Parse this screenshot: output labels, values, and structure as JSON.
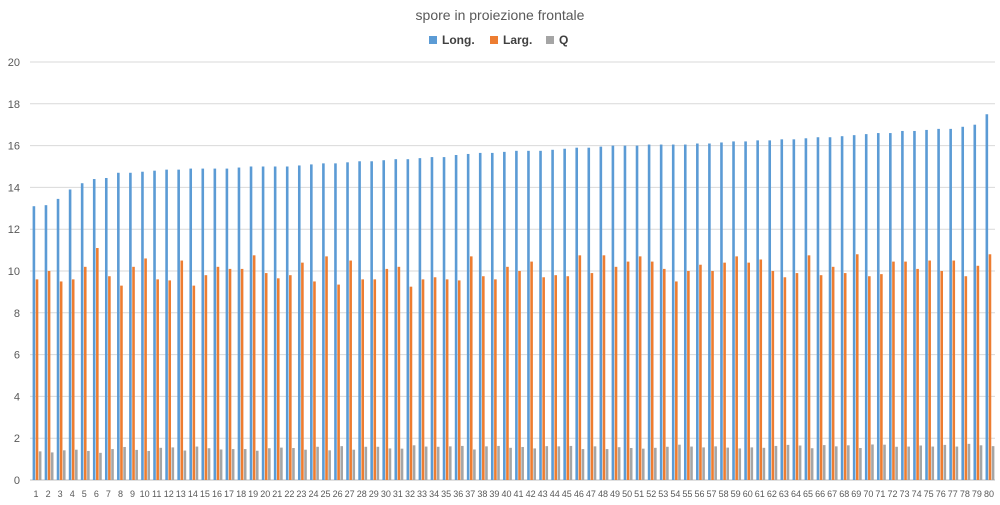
{
  "chart_data": {
    "type": "bar",
    "title": "spore in proiezione frontale",
    "xlabel": "",
    "ylabel": "",
    "ylim": [
      0,
      20
    ],
    "y_ticks": [
      0,
      2,
      4,
      6,
      8,
      10,
      12,
      14,
      16,
      18,
      20
    ],
    "grid": true,
    "legend_position": "top",
    "categories": [
      "1",
      "2",
      "3",
      "4",
      "5",
      "6",
      "7",
      "8",
      "9",
      "10",
      "11",
      "12",
      "13",
      "14",
      "15",
      "16",
      "17",
      "18",
      "19",
      "20",
      "21",
      "22",
      "23",
      "24",
      "25",
      "26",
      "27",
      "28",
      "29",
      "30",
      "31",
      "32",
      "33",
      "34",
      "35",
      "36",
      "37",
      "38",
      "39",
      "40",
      "41",
      "42",
      "43",
      "44",
      "45",
      "46",
      "47",
      "48",
      "49",
      "50",
      "51",
      "52",
      "53",
      "54",
      "55",
      "56",
      "57",
      "58",
      "59",
      "60",
      "61",
      "62",
      "63",
      "64",
      "65",
      "66",
      "67",
      "68",
      "69",
      "70",
      "71",
      "72",
      "73",
      "74",
      "75",
      "76",
      "77",
      "78",
      "79",
      "80"
    ],
    "series": [
      {
        "name": "Long.",
        "color": "#5b9bd5",
        "values": [
          13.1,
          13.15,
          13.45,
          13.9,
          14.2,
          14.4,
          14.45,
          14.7,
          14.7,
          14.75,
          14.8,
          14.85,
          14.85,
          14.9,
          14.9,
          14.9,
          14.9,
          14.95,
          15.0,
          15.0,
          15.0,
          15.0,
          15.05,
          15.1,
          15.15,
          15.15,
          15.2,
          15.25,
          15.25,
          15.3,
          15.35,
          15.35,
          15.4,
          15.45,
          15.45,
          15.55,
          15.6,
          15.65,
          15.65,
          15.7,
          15.75,
          15.75,
          15.75,
          15.8,
          15.85,
          15.9,
          15.9,
          15.95,
          16.0,
          16.0,
          16.0,
          16.05,
          16.05,
          16.05,
          16.05,
          16.1,
          16.1,
          16.15,
          16.2,
          16.2,
          16.25,
          16.25,
          16.3,
          16.3,
          16.35,
          16.4,
          16.4,
          16.45,
          16.5,
          16.55,
          16.6,
          16.6,
          16.7,
          16.7,
          16.75,
          16.8,
          16.8,
          16.9,
          17.0,
          17.5
        ]
      },
      {
        "name": "Larg.",
        "color": "#ed7d31",
        "values": [
          9.6,
          10.0,
          9.5,
          9.6,
          10.2,
          11.1,
          9.75,
          9.3,
          10.2,
          10.6,
          9.6,
          9.55,
          10.5,
          9.3,
          9.8,
          10.2,
          10.1,
          10.1,
          10.75,
          9.9,
          9.65,
          9.8,
          10.4,
          9.5,
          10.7,
          9.35,
          10.5,
          9.6,
          9.6,
          10.1,
          10.2,
          9.25,
          9.6,
          9.7,
          9.6,
          9.55,
          10.7,
          9.75,
          9.6,
          10.2,
          10.0,
          10.45,
          9.7,
          9.8,
          9.75,
          10.75,
          9.9,
          10.75,
          10.2,
          10.45,
          10.7,
          10.45,
          10.1,
          9.5,
          10.0,
          10.3,
          10.0,
          10.4,
          10.7,
          10.4,
          10.55,
          10.0,
          9.7,
          9.9,
          10.75,
          9.8,
          10.2,
          9.9,
          10.8,
          9.75,
          9.85,
          10.45,
          10.45,
          10.1,
          10.5,
          10.0,
          10.5,
          9.75,
          10.25,
          10.8
        ]
      },
      {
        "name": "Q",
        "color": "#a5a5a5",
        "values": [
          1.37,
          1.32,
          1.42,
          1.45,
          1.39,
          1.3,
          1.48,
          1.58,
          1.44,
          1.39,
          1.54,
          1.56,
          1.41,
          1.6,
          1.52,
          1.46,
          1.48,
          1.48,
          1.4,
          1.52,
          1.55,
          1.53,
          1.45,
          1.59,
          1.42,
          1.62,
          1.45,
          1.59,
          1.59,
          1.51,
          1.5,
          1.66,
          1.6,
          1.59,
          1.61,
          1.63,
          1.46,
          1.61,
          1.63,
          1.54,
          1.58,
          1.51,
          1.62,
          1.61,
          1.63,
          1.48,
          1.61,
          1.48,
          1.57,
          1.53,
          1.5,
          1.54,
          1.59,
          1.69,
          1.6,
          1.56,
          1.61,
          1.55,
          1.51,
          1.56,
          1.54,
          1.63,
          1.68,
          1.65,
          1.52,
          1.67,
          1.61,
          1.66,
          1.53,
          1.7,
          1.69,
          1.59,
          1.6,
          1.65,
          1.6,
          1.68,
          1.6,
          1.73,
          1.66,
          1.62
        ]
      }
    ]
  }
}
